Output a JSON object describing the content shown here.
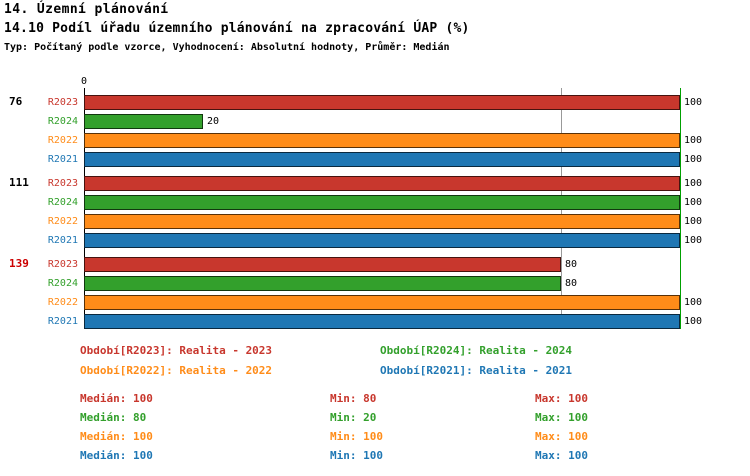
{
  "header": {
    "title": "14. Územní plánování",
    "subtitle": "14.10 Podíl úřadu územního plánování na zpracování ÚAP (%)",
    "meta": "Typ: Počítaný podle vzorce, Vyhodnocení: Absolutní hodnoty, Průměr: Medián"
  },
  "colors": {
    "R2023": "#C8372D",
    "R2024": "#33A02C",
    "R2022": "#FF8C19",
    "R2021": "#1F77B4",
    "highlight_group_label": "#CC0000",
    "gridline_80": "#999999",
    "gridline_100": "#00A000",
    "axis": "#000000"
  },
  "chart_data": {
    "type": "bar",
    "orientation": "horizontal",
    "title": "14.10 Podíl úřadu územního plánování na zpracování ÚAP (%)",
    "xlabel": "",
    "ylabel": "",
    "xlim": [
      0,
      100
    ],
    "origin_label": "0",
    "gridlines": [
      80,
      100
    ],
    "grid": true,
    "legend_position": "bottom",
    "series_order": [
      "R2023",
      "R2024",
      "R2022",
      "R2021"
    ],
    "groups": [
      {
        "label": "76",
        "highlight": false,
        "values": {
          "R2023": 100,
          "R2024": 20,
          "R2022": 100,
          "R2021": 100
        }
      },
      {
        "label": "111",
        "highlight": false,
        "values": {
          "R2023": 100,
          "R2024": 100,
          "R2022": 100,
          "R2021": 100
        }
      },
      {
        "label": "139",
        "highlight": true,
        "values": {
          "R2023": 80,
          "R2024": 80,
          "R2022": 100,
          "R2021": 100
        }
      }
    ],
    "stats": [
      {
        "series": "R2023",
        "median": 100,
        "min": 80,
        "max": 100
      },
      {
        "series": "R2024",
        "median": 80,
        "min": 20,
        "max": 100
      },
      {
        "series": "R2022",
        "median": 100,
        "min": 100,
        "max": 100
      },
      {
        "series": "R2021",
        "median": 100,
        "min": 100,
        "max": 100
      }
    ]
  },
  "legend": {
    "items": [
      {
        "series": "R2023",
        "label": "Období[R2023]: Realita - 2023"
      },
      {
        "series": "R2024",
        "label": "Období[R2024]: Realita - 2024"
      },
      {
        "series": "R2022",
        "label": "Období[R2022]: Realita - 2022"
      },
      {
        "series": "R2021",
        "label": "Období[R2021]: Realita - 2021"
      }
    ]
  },
  "stats_labels": {
    "rows": [
      {
        "series": "R2023",
        "median": "Medián: 100",
        "min": "Min: 80",
        "max": "Max: 100"
      },
      {
        "series": "R2024",
        "median": "Medián: 80",
        "min": "Min: 20",
        "max": "Max: 100"
      },
      {
        "series": "R2022",
        "median": "Medián: 100",
        "min": "Min: 100",
        "max": "Max: 100"
      },
      {
        "series": "R2021",
        "median": "Medián: 100",
        "min": "Min: 100",
        "max": "Max: 100"
      }
    ]
  }
}
